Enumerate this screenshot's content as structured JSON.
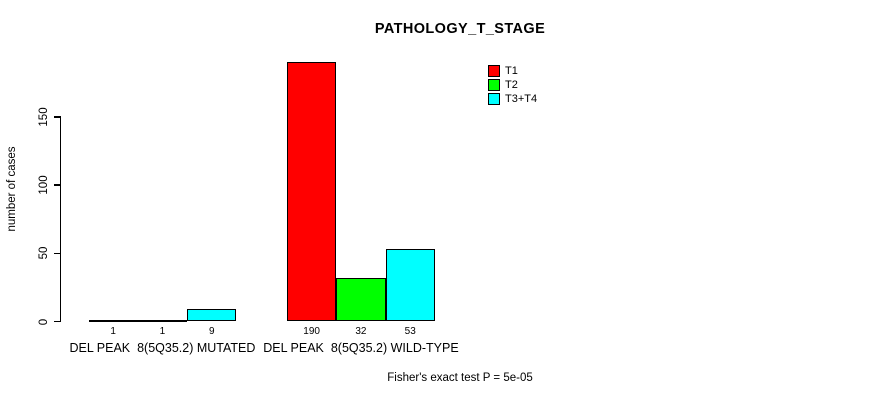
{
  "title": "PATHOLOGY_T_STAGE",
  "y_axis": {
    "label": "number of cases",
    "tick_labels": [
      "0",
      "50",
      "100",
      "150"
    ],
    "tick_values": [
      0,
      50,
      100,
      150
    ]
  },
  "legend": {
    "items": [
      {
        "label": "T1",
        "color": "#ff0000"
      },
      {
        "label": "T2",
        "color": "#00ff00"
      },
      {
        "label": "T3+T4",
        "color": "#00ffff"
      }
    ]
  },
  "footer": {
    "text": "Fisher's exact test P = 5e-05"
  },
  "chart_data": {
    "type": "bar",
    "title": "PATHOLOGY_T_STAGE",
    "xlabel": "",
    "ylabel": "number of cases",
    "ylim": [
      0,
      150
    ],
    "grid": false,
    "legend_position": "top-right",
    "categories": [
      "DEL PEAK  8(5Q35.2) MUTATED",
      "DEL PEAK  8(5Q35.2) WILD-TYPE"
    ],
    "series": [
      {
        "name": "T1",
        "color": "#ff0000",
        "values": [
          1,
          190
        ]
      },
      {
        "name": "T2",
        "color": "#00ff00",
        "values": [
          1,
          32
        ]
      },
      {
        "name": "T3+T4",
        "color": "#00ffff",
        "values": [
          9,
          53
        ]
      }
    ],
    "bar_value_labels": [
      [
        1,
        1,
        9
      ],
      [
        190,
        32,
        53
      ]
    ],
    "annotation": "Fisher's exact test P = 5e-05"
  }
}
